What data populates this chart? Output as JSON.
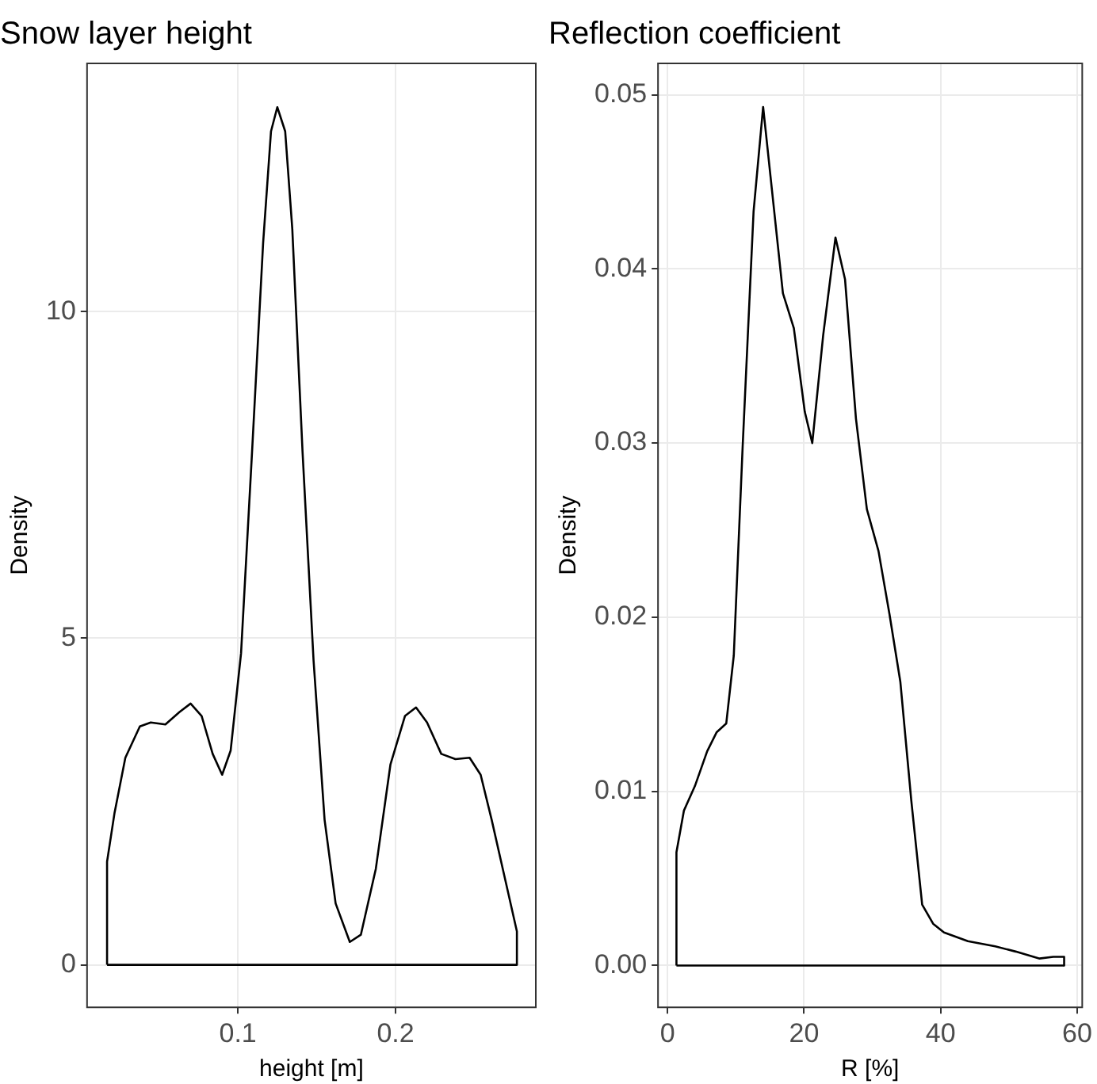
{
  "chart_data": [
    {
      "type": "line",
      "title": "Snow layer height",
      "xlabel": "height [m]",
      "ylabel": "Density",
      "xlim": [
        0.0043,
        0.289
      ],
      "ylim": [
        -0.65,
        13.8
      ],
      "xticks": [
        0.1,
        0.2
      ],
      "yticks": [
        0,
        5,
        10
      ],
      "grid": true,
      "marker": "none",
      "line_style": "solid",
      "series": [
        {
          "color": "#000000",
          "x": [
            0.017,
            0.017,
            0.0217,
            0.0286,
            0.0378,
            0.0447,
            0.054,
            0.063,
            0.07,
            0.077,
            0.084,
            0.09,
            0.0954,
            0.102,
            0.109,
            0.116,
            0.121,
            0.125,
            0.13,
            0.1345,
            0.141,
            0.148,
            0.155,
            0.162,
            0.171,
            0.178,
            0.1875,
            0.1968,
            0.206,
            0.213,
            0.22,
            0.229,
            0.238,
            0.247,
            0.254,
            0.261,
            0.27,
            0.277,
            0.277
          ],
          "values": [
            0,
            1.58,
            2.32,
            3.17,
            3.65,
            3.71,
            3.68,
            3.87,
            4.0,
            3.81,
            3.23,
            2.91,
            3.28,
            4.77,
            7.86,
            11.05,
            12.76,
            13.13,
            12.76,
            11.27,
            7.86,
            4.66,
            2.22,
            0.94,
            0.35,
            0.46,
            1.47,
            3.07,
            3.81,
            3.94,
            3.71,
            3.23,
            3.15,
            3.17,
            2.91,
            2.22,
            1.26,
            0.51,
            0
          ]
        },
        {
          "color": "#000000",
          "x": [
            0.017,
            0.277
          ],
          "values": [
            0,
            0
          ]
        }
      ]
    },
    {
      "type": "line",
      "title": "Reflection coefficient",
      "xlabel": "R [%]",
      "ylabel": "Density",
      "xlim": [
        -1.4,
        60.75
      ],
      "ylim": [
        -0.0024,
        0.0518
      ],
      "xticks": [
        0,
        20,
        40,
        60
      ],
      "yticks": [
        {
          "value": 0,
          "label": "0.00"
        },
        {
          "value": 0.01,
          "label": "0.01"
        },
        {
          "value": 0.02,
          "label": "0.02"
        },
        {
          "value": 0.03,
          "label": "0.03"
        },
        {
          "value": 0.04,
          "label": "0.04"
        },
        {
          "value": 0.05,
          "label": "0.05"
        }
      ],
      "grid": true,
      "marker": "none",
      "line_style": "solid",
      "series": [
        {
          "color": "#000000",
          "x": [
            1.3,
            1.3,
            2.4,
            4.0,
            5.8,
            7.2,
            8.6,
            9.7,
            11.0,
            12.6,
            14.0,
            15.3,
            16.9,
            18.5,
            20.1,
            21.2,
            22.8,
            24.6,
            26.0,
            27.6,
            29.2,
            30.9,
            32.5,
            34.1,
            35.7,
            37.3,
            38.9,
            40.5,
            44,
            48,
            51,
            54.5,
            56.5,
            58.1,
            58.1
          ],
          "values": [
            0,
            0.0065,
            0.0089,
            0.0103,
            0.0123,
            0.0134,
            0.0139,
            0.0178,
            0.0298,
            0.0433,
            0.0493,
            0.0445,
            0.0386,
            0.0366,
            0.0318,
            0.03,
            0.0362,
            0.0418,
            0.0394,
            0.0314,
            0.0262,
            0.0238,
            0.0202,
            0.0163,
            0.0095,
            0.0035,
            0.0024,
            0.0019,
            0.0014,
            0.0011,
            0.0008,
            0.0004,
            0.0005,
            0.0005,
            0
          ]
        },
        {
          "color": "#000000",
          "x": [
            1.3,
            58.1
          ],
          "values": [
            0,
            0
          ]
        }
      ]
    }
  ]
}
